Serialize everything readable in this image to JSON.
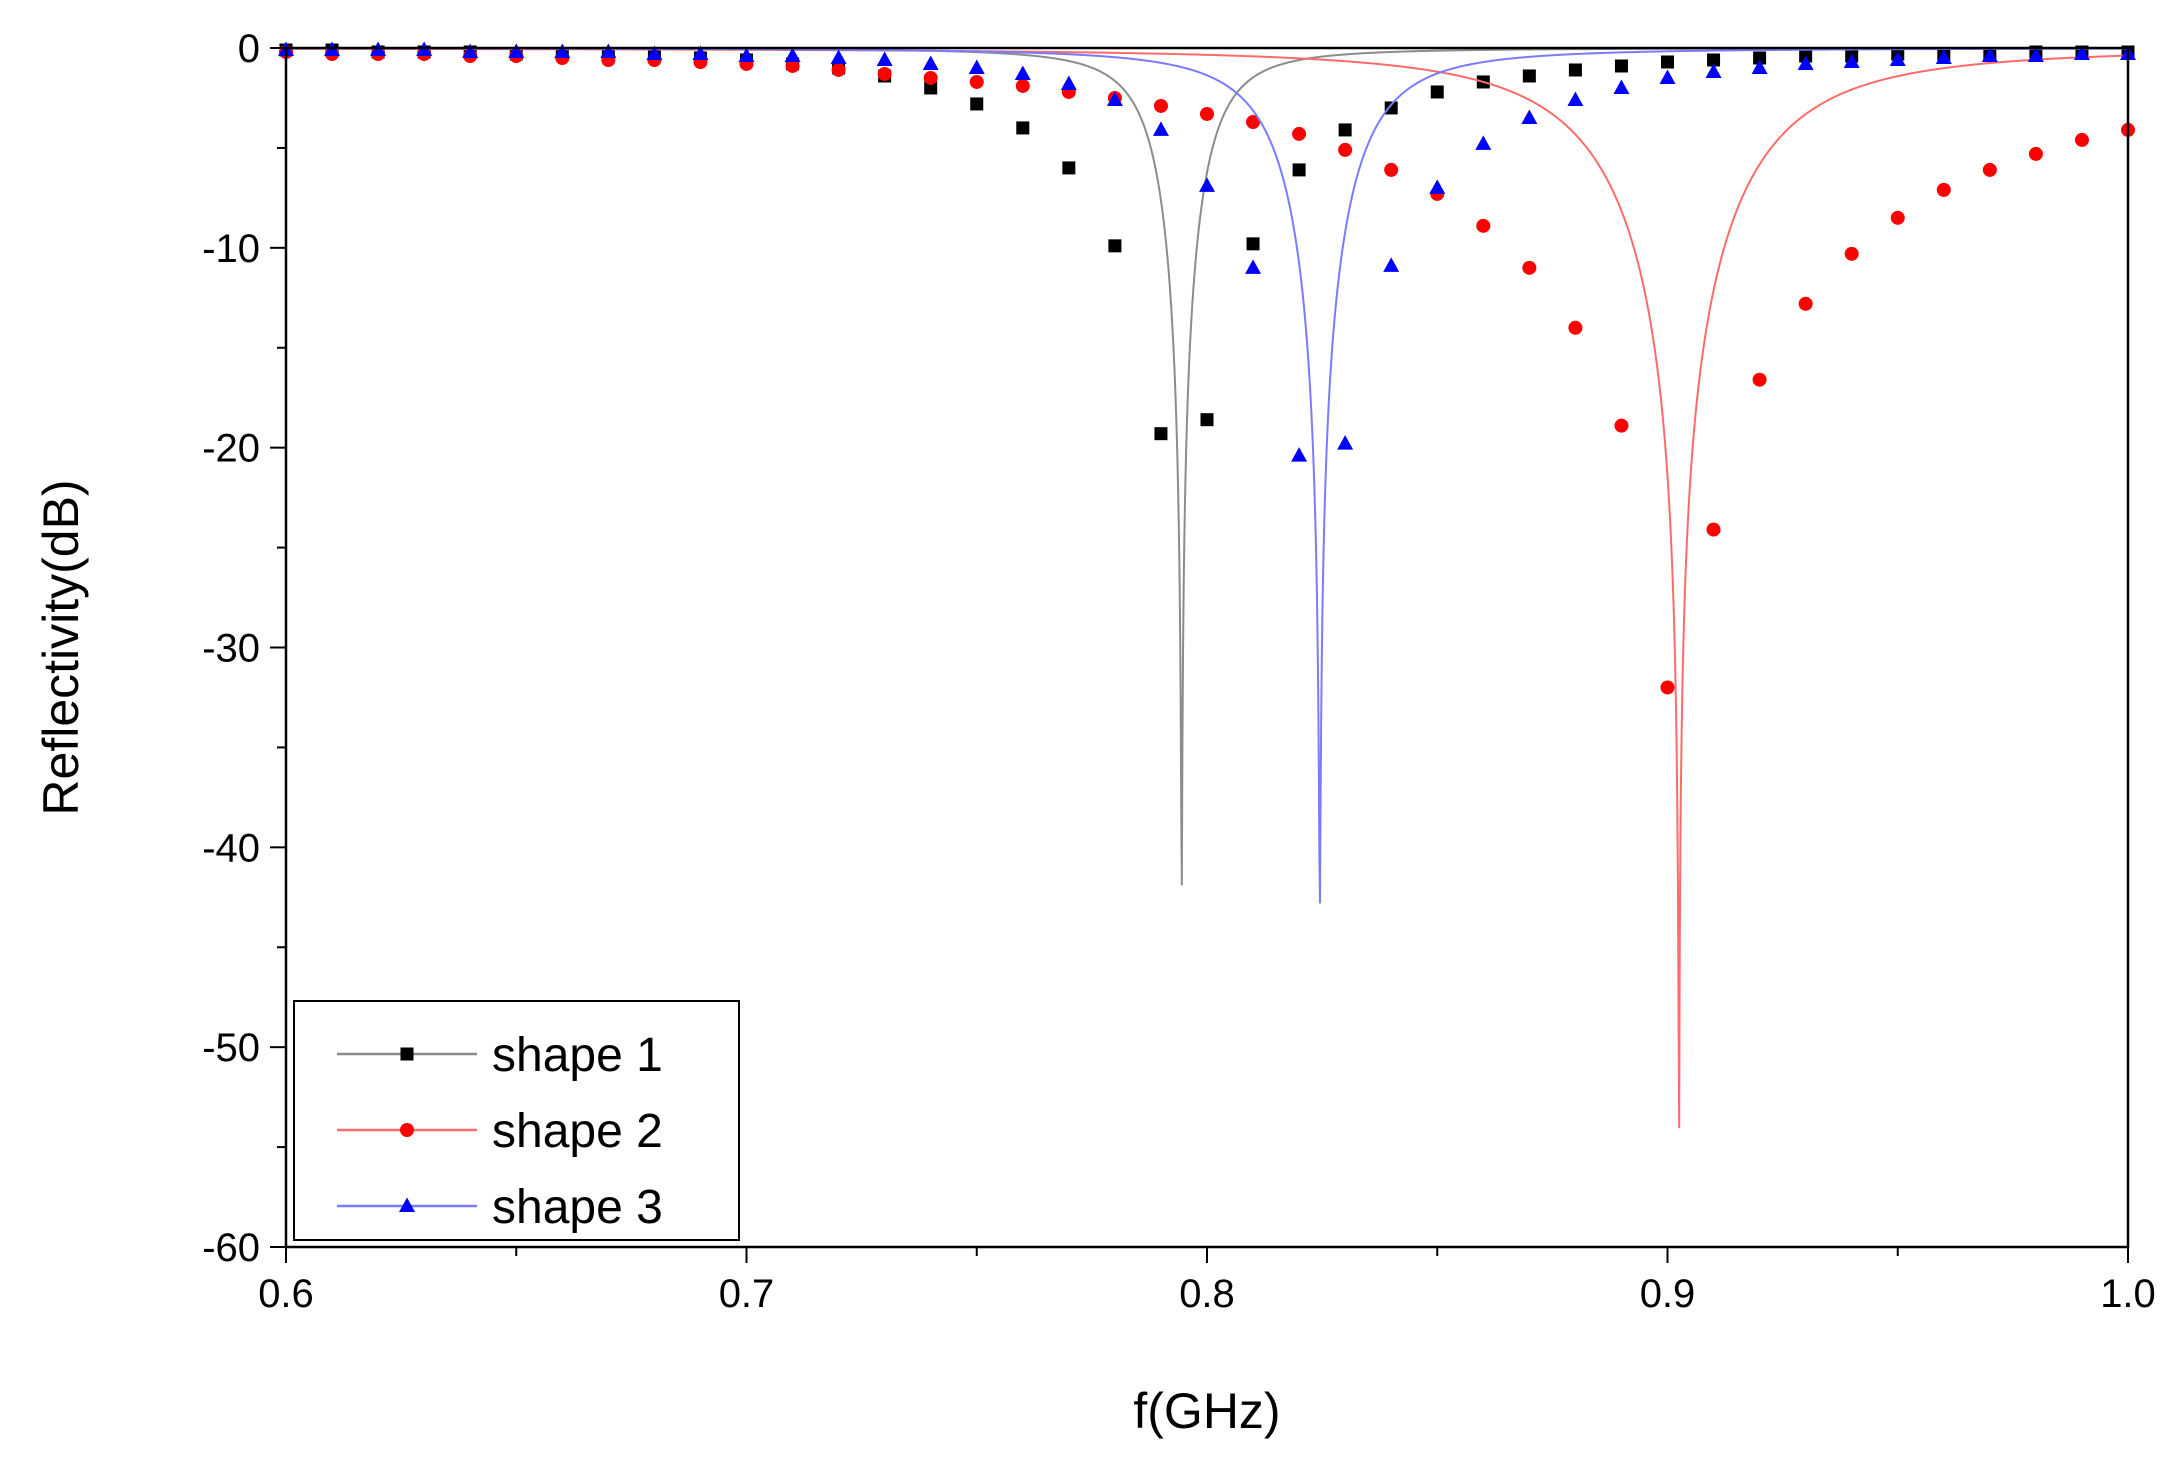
{
  "chart_data": {
    "type": "line",
    "title": "",
    "xlabel": "f(GHz)",
    "ylabel": "Reflectivity(dB)",
    "xlim": [
      0.6,
      1.0
    ],
    "ylim": [
      -60,
      0
    ],
    "x_ticks": [
      0.6,
      0.7,
      0.8,
      0.9,
      1.0
    ],
    "x_tick_labels": [
      "0.6",
      "0.7",
      "0.8",
      "0.9",
      "1.0"
    ],
    "y_ticks": [
      0,
      -10,
      -20,
      -30,
      -40,
      -50,
      -60
    ],
    "y_tick_labels": [
      "0",
      "-10",
      "-20",
      "-30",
      "-40",
      "-50",
      "-60"
    ],
    "grid": false,
    "legend_position": "bottom-left",
    "series": [
      {
        "name": "shape 1",
        "color": "#000000",
        "line_color": "#8c8c8c",
        "marker": "square",
        "resonance_ghz": 0.7945,
        "min_db": -42.7,
        "width_ghz": 0.00985,
        "marker_x": [
          0.6,
          0.61,
          0.62,
          0.63,
          0.64,
          0.65,
          0.66,
          0.67,
          0.68,
          0.69,
          0.7,
          0.71,
          0.72,
          0.73,
          0.74,
          0.75,
          0.76,
          0.77,
          0.78,
          0.79,
          0.8,
          0.81,
          0.82,
          0.83,
          0.84,
          0.85,
          0.86,
          0.87,
          0.88,
          0.89,
          0.9,
          0.91,
          0.92,
          0.93,
          0.94,
          0.95,
          0.96,
          0.97,
          0.98,
          0.99,
          1.0
        ],
        "marker_y": [
          -0.1,
          -0.1,
          -0.2,
          -0.2,
          -0.2,
          -0.3,
          -0.3,
          -0.3,
          -0.4,
          -0.5,
          -0.6,
          -0.8,
          -1.0,
          -1.4,
          -2.0,
          -2.8,
          -4.0,
          -6.0,
          -9.9,
          -19.3,
          -18.6,
          -9.8,
          -6.1,
          -4.1,
          -3.0,
          -2.2,
          -1.7,
          -1.4,
          -1.1,
          -0.9,
          -0.7,
          -0.6,
          -0.5,
          -0.4,
          -0.4,
          -0.3,
          -0.3,
          -0.3,
          -0.2,
          -0.2,
          -0.2
        ]
      },
      {
        "name": "shape 2",
        "color": "#ff0000",
        "line_color": "#ff6b6b",
        "marker": "circle",
        "resonance_ghz": 0.9025,
        "min_db": -55.7,
        "width_ghz": 0.0294,
        "marker_x": [
          0.6,
          0.61,
          0.62,
          0.63,
          0.64,
          0.65,
          0.66,
          0.67,
          0.68,
          0.69,
          0.7,
          0.71,
          0.72,
          0.73,
          0.74,
          0.75,
          0.76,
          0.77,
          0.78,
          0.79,
          0.8,
          0.81,
          0.82,
          0.83,
          0.84,
          0.85,
          0.86,
          0.87,
          0.88,
          0.89,
          0.9,
          0.91,
          0.92,
          0.93,
          0.94,
          0.95,
          0.96,
          0.97,
          0.98,
          0.99,
          1.0
        ],
        "marker_y": [
          -0.2,
          -0.3,
          -0.3,
          -0.3,
          -0.4,
          -0.4,
          -0.5,
          -0.6,
          -0.6,
          -0.7,
          -0.8,
          -0.9,
          -1.1,
          -1.3,
          -1.5,
          -1.7,
          -1.9,
          -2.2,
          -2.5,
          -2.9,
          -3.3,
          -3.7,
          -4.3,
          -5.1,
          -6.1,
          -7.3,
          -8.9,
          -11.0,
          -14.0,
          -18.9,
          -32.0,
          -24.1,
          -16.6,
          -12.8,
          -10.3,
          -8.5,
          -7.1,
          -6.1,
          -5.3,
          -4.6,
          -4.1
        ]
      },
      {
        "name": "shape 3",
        "color": "#0000ff",
        "line_color": "#7b7bff",
        "marker": "triangle",
        "resonance_ghz": 0.8245,
        "min_db": -43.2,
        "width_ghz": 0.0149,
        "marker_x": [
          0.6,
          0.61,
          0.62,
          0.63,
          0.64,
          0.65,
          0.66,
          0.67,
          0.68,
          0.69,
          0.7,
          0.71,
          0.72,
          0.73,
          0.74,
          0.75,
          0.76,
          0.77,
          0.78,
          0.79,
          0.8,
          0.81,
          0.82,
          0.83,
          0.84,
          0.85,
          0.86,
          0.87,
          0.88,
          0.89,
          0.9,
          0.91,
          0.92,
          0.93,
          0.94,
          0.95,
          0.96,
          0.97,
          0.98,
          0.99,
          1.0
        ],
        "marker_y": [
          -0.1,
          -0.1,
          -0.1,
          -0.1,
          -0.2,
          -0.2,
          -0.2,
          -0.2,
          -0.3,
          -0.3,
          -0.4,
          -0.4,
          -0.5,
          -0.6,
          -0.8,
          -1.0,
          -1.3,
          -1.8,
          -2.6,
          -4.1,
          -6.9,
          -11.0,
          -20.4,
          -19.8,
          -10.9,
          -7.0,
          -4.8,
          -3.5,
          -2.6,
          -2.0,
          -1.5,
          -1.2,
          -1.0,
          -0.8,
          -0.7,
          -0.6,
          -0.5,
          -0.4,
          -0.4,
          -0.3,
          -0.3
        ]
      }
    ]
  }
}
